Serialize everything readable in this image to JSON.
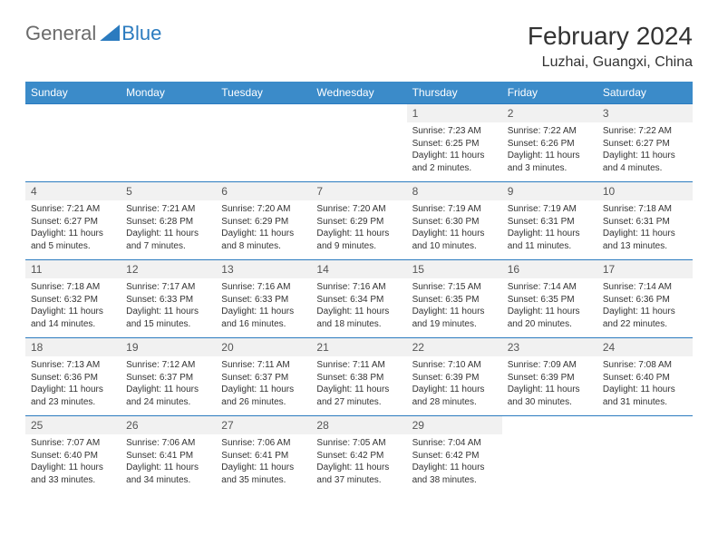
{
  "logo": {
    "text1": "General",
    "text2": "Blue"
  },
  "title": "February 2024",
  "location": "Luzhai, Guangxi, China",
  "colors": {
    "header_bg": "#3b8bc9",
    "border": "#2b7bbf",
    "daynum_bg": "#f1f1f1",
    "logo_gray": "#6b6b6b",
    "logo_blue": "#2b7bbf",
    "text": "#333333"
  },
  "typography": {
    "title_fontsize": 28,
    "location_fontsize": 16,
    "dayheader_fontsize": 12,
    "daynum_fontsize": 12,
    "detail_fontsize": 10
  },
  "calendar": {
    "type": "table",
    "day_headers": [
      "Sunday",
      "Monday",
      "Tuesday",
      "Wednesday",
      "Thursday",
      "Friday",
      "Saturday"
    ],
    "weeks": [
      [
        null,
        null,
        null,
        null,
        {
          "num": "1",
          "sunrise": "Sunrise: 7:23 AM",
          "sunset": "Sunset: 6:25 PM",
          "daylight": "Daylight: 11 hours and 2 minutes."
        },
        {
          "num": "2",
          "sunrise": "Sunrise: 7:22 AM",
          "sunset": "Sunset: 6:26 PM",
          "daylight": "Daylight: 11 hours and 3 minutes."
        },
        {
          "num": "3",
          "sunrise": "Sunrise: 7:22 AM",
          "sunset": "Sunset: 6:27 PM",
          "daylight": "Daylight: 11 hours and 4 minutes."
        }
      ],
      [
        {
          "num": "4",
          "sunrise": "Sunrise: 7:21 AM",
          "sunset": "Sunset: 6:27 PM",
          "daylight": "Daylight: 11 hours and 5 minutes."
        },
        {
          "num": "5",
          "sunrise": "Sunrise: 7:21 AM",
          "sunset": "Sunset: 6:28 PM",
          "daylight": "Daylight: 11 hours and 7 minutes."
        },
        {
          "num": "6",
          "sunrise": "Sunrise: 7:20 AM",
          "sunset": "Sunset: 6:29 PM",
          "daylight": "Daylight: 11 hours and 8 minutes."
        },
        {
          "num": "7",
          "sunrise": "Sunrise: 7:20 AM",
          "sunset": "Sunset: 6:29 PM",
          "daylight": "Daylight: 11 hours and 9 minutes."
        },
        {
          "num": "8",
          "sunrise": "Sunrise: 7:19 AM",
          "sunset": "Sunset: 6:30 PM",
          "daylight": "Daylight: 11 hours and 10 minutes."
        },
        {
          "num": "9",
          "sunrise": "Sunrise: 7:19 AM",
          "sunset": "Sunset: 6:31 PM",
          "daylight": "Daylight: 11 hours and 11 minutes."
        },
        {
          "num": "10",
          "sunrise": "Sunrise: 7:18 AM",
          "sunset": "Sunset: 6:31 PM",
          "daylight": "Daylight: 11 hours and 13 minutes."
        }
      ],
      [
        {
          "num": "11",
          "sunrise": "Sunrise: 7:18 AM",
          "sunset": "Sunset: 6:32 PM",
          "daylight": "Daylight: 11 hours and 14 minutes."
        },
        {
          "num": "12",
          "sunrise": "Sunrise: 7:17 AM",
          "sunset": "Sunset: 6:33 PM",
          "daylight": "Daylight: 11 hours and 15 minutes."
        },
        {
          "num": "13",
          "sunrise": "Sunrise: 7:16 AM",
          "sunset": "Sunset: 6:33 PM",
          "daylight": "Daylight: 11 hours and 16 minutes."
        },
        {
          "num": "14",
          "sunrise": "Sunrise: 7:16 AM",
          "sunset": "Sunset: 6:34 PM",
          "daylight": "Daylight: 11 hours and 18 minutes."
        },
        {
          "num": "15",
          "sunrise": "Sunrise: 7:15 AM",
          "sunset": "Sunset: 6:35 PM",
          "daylight": "Daylight: 11 hours and 19 minutes."
        },
        {
          "num": "16",
          "sunrise": "Sunrise: 7:14 AM",
          "sunset": "Sunset: 6:35 PM",
          "daylight": "Daylight: 11 hours and 20 minutes."
        },
        {
          "num": "17",
          "sunrise": "Sunrise: 7:14 AM",
          "sunset": "Sunset: 6:36 PM",
          "daylight": "Daylight: 11 hours and 22 minutes."
        }
      ],
      [
        {
          "num": "18",
          "sunrise": "Sunrise: 7:13 AM",
          "sunset": "Sunset: 6:36 PM",
          "daylight": "Daylight: 11 hours and 23 minutes."
        },
        {
          "num": "19",
          "sunrise": "Sunrise: 7:12 AM",
          "sunset": "Sunset: 6:37 PM",
          "daylight": "Daylight: 11 hours and 24 minutes."
        },
        {
          "num": "20",
          "sunrise": "Sunrise: 7:11 AM",
          "sunset": "Sunset: 6:37 PM",
          "daylight": "Daylight: 11 hours and 26 minutes."
        },
        {
          "num": "21",
          "sunrise": "Sunrise: 7:11 AM",
          "sunset": "Sunset: 6:38 PM",
          "daylight": "Daylight: 11 hours and 27 minutes."
        },
        {
          "num": "22",
          "sunrise": "Sunrise: 7:10 AM",
          "sunset": "Sunset: 6:39 PM",
          "daylight": "Daylight: 11 hours and 28 minutes."
        },
        {
          "num": "23",
          "sunrise": "Sunrise: 7:09 AM",
          "sunset": "Sunset: 6:39 PM",
          "daylight": "Daylight: 11 hours and 30 minutes."
        },
        {
          "num": "24",
          "sunrise": "Sunrise: 7:08 AM",
          "sunset": "Sunset: 6:40 PM",
          "daylight": "Daylight: 11 hours and 31 minutes."
        }
      ],
      [
        {
          "num": "25",
          "sunrise": "Sunrise: 7:07 AM",
          "sunset": "Sunset: 6:40 PM",
          "daylight": "Daylight: 11 hours and 33 minutes."
        },
        {
          "num": "26",
          "sunrise": "Sunrise: 7:06 AM",
          "sunset": "Sunset: 6:41 PM",
          "daylight": "Daylight: 11 hours and 34 minutes."
        },
        {
          "num": "27",
          "sunrise": "Sunrise: 7:06 AM",
          "sunset": "Sunset: 6:41 PM",
          "daylight": "Daylight: 11 hours and 35 minutes."
        },
        {
          "num": "28",
          "sunrise": "Sunrise: 7:05 AM",
          "sunset": "Sunset: 6:42 PM",
          "daylight": "Daylight: 11 hours and 37 minutes."
        },
        {
          "num": "29",
          "sunrise": "Sunrise: 7:04 AM",
          "sunset": "Sunset: 6:42 PM",
          "daylight": "Daylight: 11 hours and 38 minutes."
        },
        null,
        null
      ]
    ]
  }
}
